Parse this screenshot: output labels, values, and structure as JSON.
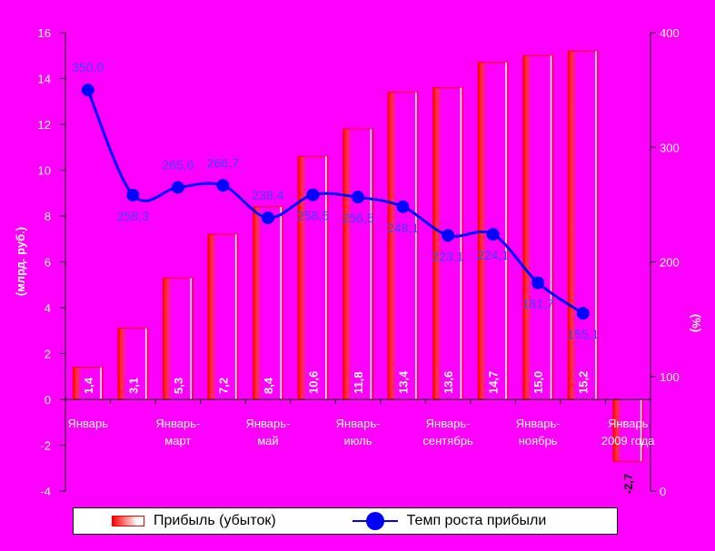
{
  "chart_data": {
    "type": "bar",
    "title": "",
    "ylabel_left": "(млрд. руб.)",
    "ylabel_right": "(%)",
    "ylim_left": [
      -4,
      16
    ],
    "left_ticks": [
      -4,
      -2,
      0,
      2,
      4,
      6,
      8,
      10,
      12,
      14,
      16
    ],
    "ylim_right": [
      0,
      400
    ],
    "right_ticks": [
      0,
      100,
      200,
      300,
      400
    ],
    "x_tick_labels": [
      {
        "slot": 0,
        "lines": [
          "Январь"
        ]
      },
      {
        "slot": 2,
        "lines": [
          "Январь-",
          "март"
        ]
      },
      {
        "slot": 4,
        "lines": [
          "Январь-",
          "май"
        ]
      },
      {
        "slot": 6,
        "lines": [
          "Январь-",
          "июль"
        ]
      },
      {
        "slot": 8,
        "lines": [
          "Январь-",
          "сентябрь"
        ]
      },
      {
        "slot": 10,
        "lines": [
          "Январь-",
          "ноябрь"
        ]
      },
      {
        "slot": 12,
        "lines": [
          "Январь",
          "2009 года"
        ]
      }
    ],
    "series": [
      {
        "name": "Прибыль (убыток)",
        "axis": "left",
        "kind": "bar",
        "values": [
          1.4,
          3.1,
          5.3,
          7.2,
          8.4,
          10.6,
          11.8,
          13.4,
          13.6,
          14.7,
          15.0,
          15.2,
          -2.7
        ],
        "labels": [
          "1,4",
          "3,1",
          "5,3",
          "7,2",
          "8,4",
          "10,6",
          "11,8",
          "13,4",
          "13,6",
          "14,7",
          "15,0",
          "15,2",
          "-2,7"
        ]
      },
      {
        "name": "Темп роста прибыли",
        "axis": "right",
        "kind": "line",
        "values": [
          350.0,
          258.3,
          265.0,
          266.7,
          238.4,
          258.5,
          256.5,
          248.1,
          223.1,
          224.1,
          181.7,
          155.1
        ],
        "labels": [
          "350,0",
          "258,3",
          "265,0",
          "266,7",
          "238,4",
          "258,5",
          "256,5",
          "248,1",
          "223,1",
          "224,1",
          "181,7",
          "155,1"
        ]
      }
    ],
    "grid": false,
    "legend_position": "bottom",
    "colors": {
      "background": "#FF00FF",
      "bar_border": "#FF0000",
      "bar_fill_start": "#FF0000",
      "bar_fill_end": "#FFFFFF",
      "line": "#0000FF",
      "axis": "#000000",
      "tick_text": "#FFFFFF",
      "bar_label": "#FFFFFF",
      "negative_bar_label": "#000000",
      "line_label": "#4040FF"
    }
  }
}
